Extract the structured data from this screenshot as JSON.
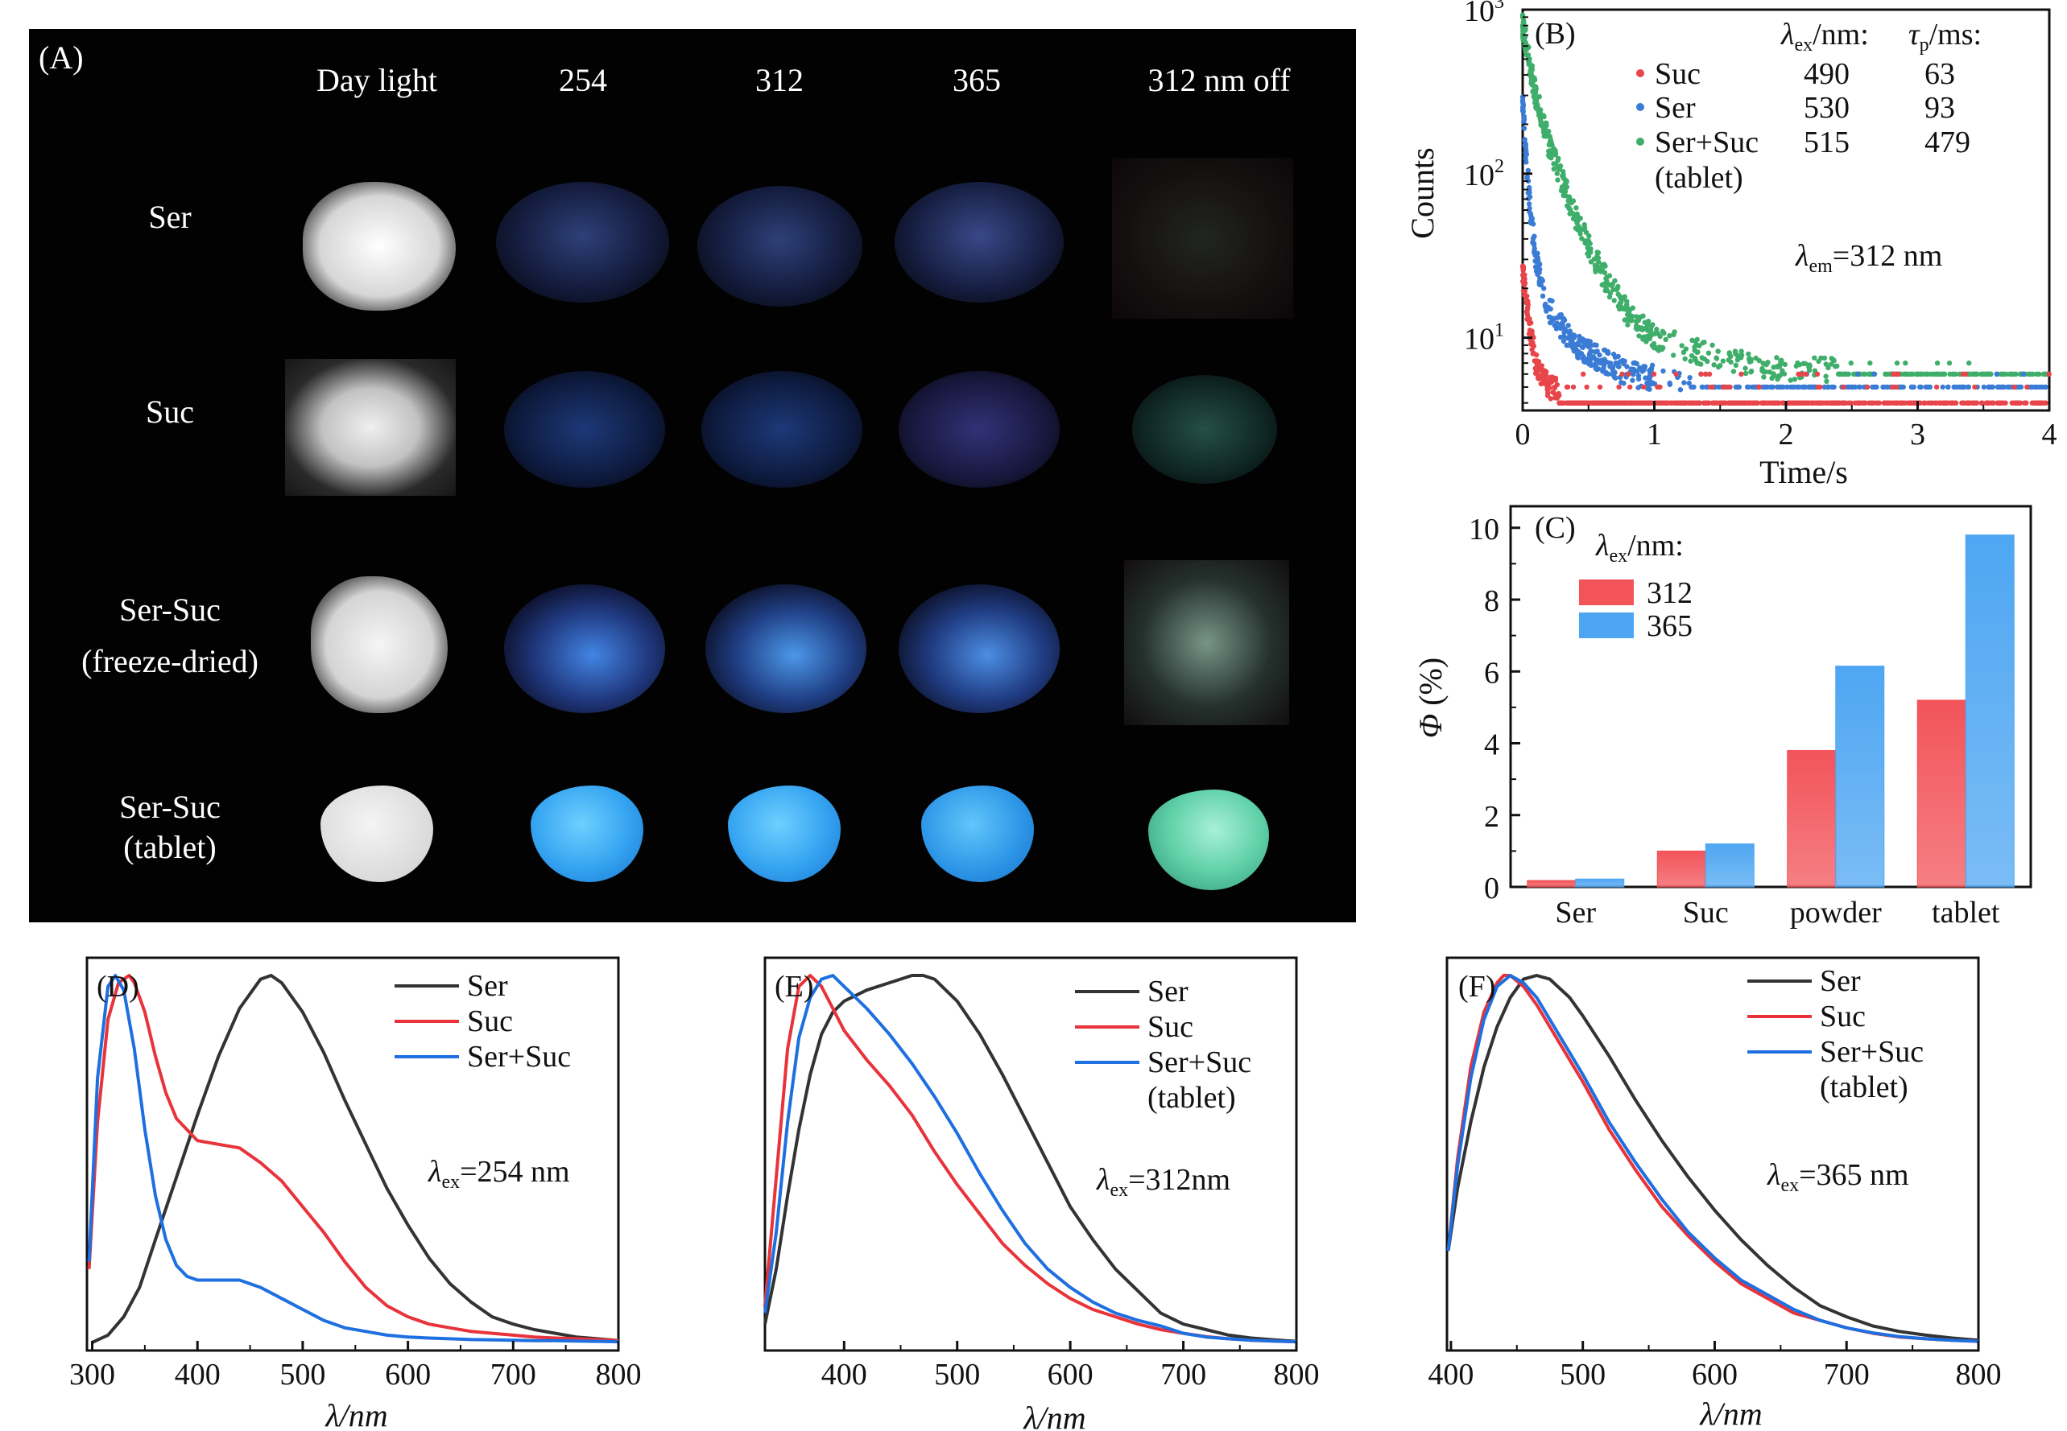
{
  "panel_a": {
    "label": "(A)",
    "columns": [
      "Day light",
      "254",
      "312",
      "365",
      "312 nm off"
    ],
    "rows": [
      {
        "line1": "Ser",
        "line2": ""
      },
      {
        "line1": "Suc",
        "line2": ""
      },
      {
        "line1": "Ser-Suc",
        "line2": "(freeze-dried)"
      },
      {
        "line1": "Ser-Suc",
        "line2": "(tablet)"
      }
    ],
    "colors": {
      "background": "#020202",
      "daylight": "#e8e8e8",
      "uv_blue": "#2f86e8",
      "afterglow_green": "#5fd0a8"
    }
  },
  "panel_b": {
    "label": "(B)",
    "ylabel": "Counts",
    "xlabel": "Time/s",
    "x_ticks": [
      "0",
      "1",
      "2",
      "3",
      "4"
    ],
    "y_ticks": [
      {
        "base": "10",
        "exp": "1"
      },
      {
        "base": "10",
        "exp": "2"
      },
      {
        "base": "10",
        "exp": "3"
      }
    ],
    "header_ex": {
      "sym": "λ",
      "sub": "ex",
      "rest": "/nm:"
    },
    "header_tau": {
      "sym": "τ",
      "sub": "p",
      "rest": "/ms:"
    },
    "em_note": {
      "sym": "λ",
      "sub": "em",
      "rest": "=312 nm"
    },
    "table": [
      {
        "name": "Suc",
        "extra": "",
        "ex": "490",
        "tau": "63",
        "color": "#e8454b"
      },
      {
        "name": "Ser",
        "extra": "",
        "ex": "530",
        "tau": "93",
        "color": "#3a7bd5"
      },
      {
        "name": "Ser+Suc",
        "extra": "(tablet)",
        "ex": "515",
        "tau": "479",
        "color": "#3fae6a"
      }
    ]
  },
  "panel_c": {
    "label": "(C)",
    "ylabel_sym": "Φ",
    "ylabel_rest": " (%)",
    "legend_title": {
      "sym": "λ",
      "sub": "ex",
      "rest": "/nm:"
    },
    "legend": [
      "312",
      "365"
    ],
    "y_ticks": [
      "0",
      "2",
      "4",
      "6",
      "8",
      "10"
    ],
    "colors": {
      "s312": "#f2545a",
      "s365": "#4ea6f2"
    }
  },
  "panel_d": {
    "label": "(D)",
    "xlabel": "λ/nm",
    "note": {
      "sym": "λ",
      "sub": "ex",
      "rest": "=254 nm"
    },
    "x_ticks": [
      "300",
      "400",
      "500",
      "600",
      "700",
      "800"
    ],
    "legend": [
      [
        "Ser"
      ],
      [
        "Suc"
      ],
      [
        "Ser+Suc"
      ]
    ]
  },
  "panel_e": {
    "label": "(E)",
    "xlabel": "λ/nm",
    "note": {
      "sym": "λ",
      "sub": "ex",
      "rest": "=312nm"
    },
    "x_ticks": [
      "400",
      "500",
      "600",
      "700",
      "800"
    ],
    "legend": [
      [
        "Ser"
      ],
      [
        "Suc"
      ],
      [
        "Ser+Suc",
        "(tablet)"
      ]
    ]
  },
  "panel_f": {
    "label": "(F)",
    "xlabel": "λ/nm",
    "note": {
      "sym": "λ",
      "sub": "ex",
      "rest": "=365 nm"
    },
    "x_ticks": [
      "400",
      "500",
      "600",
      "700",
      "800"
    ],
    "legend": [
      [
        "Ser"
      ],
      [
        "Suc"
      ],
      [
        "Ser+Suc",
        "(tablet)"
      ]
    ]
  },
  "colors": {
    "ser": "#333333",
    "suc": "#e8333b",
    "sersuc": "#1e6fe0"
  },
  "chart_data": [
    {
      "id": "B",
      "type": "scatter",
      "xlabel": "Time/s",
      "ylabel": "Counts",
      "xlim": [
        0,
        4
      ],
      "ylim": [
        3.6,
        1000
      ],
      "y_scale": "log",
      "series": [
        {
          "name": "Suc",
          "decay_lifetime_ms": 63,
          "peak_counts": 25,
          "floor_counts": 4,
          "points": [
            [
              0.0,
              25
            ],
            [
              0.05,
              12
            ],
            [
              0.1,
              7
            ],
            [
              0.2,
              5
            ],
            [
              0.4,
              4.5
            ],
            [
              1.0,
              4.2
            ],
            [
              2.0,
              4.0
            ],
            [
              4.0,
              4.0
            ]
          ]
        },
        {
          "name": "Ser",
          "decay_lifetime_ms": 93,
          "peak_counts": 260,
          "floor_counts": 4.5,
          "points": [
            [
              0.0,
              260
            ],
            [
              0.05,
              70
            ],
            [
              0.1,
              30
            ],
            [
              0.2,
              15
            ],
            [
              0.4,
              9
            ],
            [
              0.8,
              6
            ],
            [
              1.5,
              5
            ],
            [
              4.0,
              4.5
            ]
          ]
        },
        {
          "name": "Ser+Suc (tablet)",
          "decay_lifetime_ms": 479,
          "peak_counts": 800,
          "floor_counts": 5.5,
          "points": [
            [
              0.0,
              800
            ],
            [
              0.1,
              300
            ],
            [
              0.2,
              150
            ],
            [
              0.4,
              55
            ],
            [
              0.6,
              25
            ],
            [
              0.8,
              14
            ],
            [
              1.0,
              10
            ],
            [
              1.5,
              7.5
            ],
            [
              2.0,
              6.5
            ],
            [
              3.0,
              6
            ],
            [
              4.0,
              5.5
            ]
          ]
        }
      ]
    },
    {
      "id": "C",
      "type": "bar",
      "ylabel": "Φ (%)",
      "ylim": [
        0,
        10.6
      ],
      "categories": [
        "Ser",
        "Suc",
        "powder",
        "tablet"
      ],
      "series": [
        {
          "name": "312",
          "values": [
            0.18,
            1.0,
            3.8,
            5.2
          ]
        },
        {
          "name": "365",
          "values": [
            0.22,
            1.2,
            6.15,
            9.8
          ]
        }
      ]
    },
    {
      "id": "D",
      "type": "line",
      "xlabel": "λ/nm",
      "xlim": [
        295,
        800
      ],
      "ylim": [
        0,
        1.0
      ],
      "series": [
        {
          "name": "Ser",
          "x": [
            300,
            315,
            330,
            345,
            360,
            380,
            400,
            420,
            440,
            460,
            470,
            480,
            500,
            520,
            540,
            560,
            580,
            600,
            620,
            640,
            660,
            680,
            700,
            720,
            740,
            760,
            780,
            800
          ],
          "y": [
            0.0,
            0.02,
            0.07,
            0.15,
            0.28,
            0.45,
            0.62,
            0.78,
            0.91,
            0.99,
            1.0,
            0.98,
            0.9,
            0.79,
            0.66,
            0.54,
            0.42,
            0.32,
            0.23,
            0.16,
            0.11,
            0.07,
            0.05,
            0.035,
            0.025,
            0.015,
            0.01,
            0.005
          ]
        },
        {
          "name": "Suc",
          "x": [
            297,
            305,
            315,
            325,
            335,
            340,
            350,
            360,
            370,
            380,
            400,
            420,
            440,
            460,
            480,
            500,
            520,
            540,
            560,
            580,
            600,
            620,
            640,
            660,
            680,
            700,
            720,
            740,
            760,
            780,
            800
          ],
          "y": [
            0.2,
            0.6,
            0.88,
            0.98,
            1.0,
            0.98,
            0.9,
            0.78,
            0.68,
            0.61,
            0.55,
            0.54,
            0.53,
            0.49,
            0.44,
            0.37,
            0.3,
            0.22,
            0.15,
            0.1,
            0.07,
            0.05,
            0.04,
            0.03,
            0.025,
            0.02,
            0.015,
            0.012,
            0.01,
            0.008,
            0.005
          ]
        },
        {
          "name": "Ser+Suc",
          "x": [
            297,
            305,
            315,
            322,
            330,
            340,
            350,
            360,
            370,
            380,
            390,
            400,
            420,
            440,
            460,
            480,
            500,
            520,
            540,
            560,
            580,
            600,
            620,
            640,
            660,
            680,
            700,
            720,
            740,
            760,
            780,
            800
          ],
          "y": [
            0.22,
            0.72,
            0.97,
            1.0,
            0.96,
            0.8,
            0.58,
            0.4,
            0.28,
            0.21,
            0.18,
            0.17,
            0.17,
            0.17,
            0.15,
            0.12,
            0.09,
            0.06,
            0.04,
            0.03,
            0.02,
            0.015,
            0.012,
            0.01,
            0.008,
            0.007,
            0.006,
            0.005,
            0.005,
            0.004,
            0.003,
            0.002
          ]
        }
      ]
    },
    {
      "id": "E",
      "type": "line",
      "xlabel": "λ/nm",
      "xlim": [
        330,
        800
      ],
      "ylim": [
        0,
        1.0
      ],
      "series": [
        {
          "name": "Ser",
          "x": [
            330,
            340,
            350,
            360,
            370,
            380,
            390,
            400,
            420,
            440,
            460,
            470,
            480,
            500,
            520,
            540,
            560,
            580,
            600,
            620,
            640,
            660,
            680,
            700,
            720,
            740,
            760,
            780,
            800
          ],
          "y": [
            0.05,
            0.2,
            0.4,
            0.58,
            0.73,
            0.84,
            0.9,
            0.93,
            0.96,
            0.98,
            1.0,
            1.0,
            0.99,
            0.93,
            0.84,
            0.73,
            0.61,
            0.49,
            0.37,
            0.28,
            0.2,
            0.14,
            0.08,
            0.05,
            0.035,
            0.02,
            0.012,
            0.007,
            0.003
          ]
        },
        {
          "name": "Suc",
          "x": [
            330,
            340,
            350,
            360,
            370,
            380,
            390,
            400,
            420,
            440,
            460,
            480,
            500,
            520,
            540,
            560,
            580,
            600,
            620,
            640,
            660,
            680,
            700,
            720,
            740,
            760,
            780,
            800
          ],
          "y": [
            0.1,
            0.45,
            0.8,
            0.97,
            1.0,
            0.97,
            0.91,
            0.85,
            0.77,
            0.7,
            0.62,
            0.52,
            0.43,
            0.35,
            0.27,
            0.21,
            0.16,
            0.12,
            0.09,
            0.07,
            0.05,
            0.035,
            0.025,
            0.016,
            0.01,
            0.006,
            0.004,
            0.002
          ]
        },
        {
          "name": "Ser+Suc (tablet)",
          "x": [
            330,
            340,
            350,
            360,
            370,
            380,
            390,
            400,
            420,
            440,
            460,
            480,
            500,
            520,
            540,
            560,
            580,
            600,
            620,
            640,
            660,
            680,
            700,
            720,
            740,
            760,
            780,
            800
          ],
          "y": [
            0.08,
            0.3,
            0.6,
            0.83,
            0.94,
            0.99,
            1.0,
            0.97,
            0.91,
            0.84,
            0.76,
            0.67,
            0.57,
            0.46,
            0.36,
            0.27,
            0.2,
            0.15,
            0.11,
            0.08,
            0.06,
            0.045,
            0.025,
            0.015,
            0.01,
            0.006,
            0.004,
            0.002
          ]
        }
      ]
    },
    {
      "id": "F",
      "type": "line",
      "xlabel": "λ/nm",
      "xlim": [
        397,
        800
      ],
      "ylim": [
        0,
        1.0
      ],
      "series": [
        {
          "name": "Ser",
          "x": [
            398,
            405,
            415,
            425,
            435,
            445,
            455,
            465,
            475,
            490,
            500,
            520,
            540,
            560,
            580,
            600,
            620,
            640,
            660,
            680,
            700,
            720,
            740,
            760,
            780,
            800
          ],
          "y": [
            0.25,
            0.42,
            0.6,
            0.75,
            0.86,
            0.94,
            0.99,
            1.0,
            0.99,
            0.94,
            0.89,
            0.78,
            0.66,
            0.55,
            0.45,
            0.36,
            0.28,
            0.21,
            0.15,
            0.1,
            0.07,
            0.045,
            0.03,
            0.02,
            0.012,
            0.006
          ]
        },
        {
          "name": "Suc",
          "x": [
            398,
            405,
            415,
            425,
            435,
            440,
            445,
            455,
            465,
            480,
            500,
            520,
            540,
            560,
            580,
            600,
            620,
            640,
            660,
            680,
            700,
            720,
            740,
            760,
            780,
            800
          ],
          "y": [
            0.25,
            0.5,
            0.75,
            0.9,
            0.98,
            1.0,
            1.0,
            0.97,
            0.92,
            0.83,
            0.71,
            0.58,
            0.47,
            0.37,
            0.29,
            0.22,
            0.16,
            0.12,
            0.08,
            0.06,
            0.04,
            0.025,
            0.015,
            0.01,
            0.006,
            0.003
          ]
        },
        {
          "name": "Ser+Suc (tablet)",
          "x": [
            398,
            405,
            415,
            425,
            435,
            445,
            455,
            465,
            480,
            500,
            520,
            540,
            560,
            580,
            600,
            620,
            640,
            660,
            680,
            700,
            720,
            740,
            760,
            780,
            800
          ],
          "y": [
            0.25,
            0.48,
            0.72,
            0.88,
            0.97,
            1.0,
            0.98,
            0.94,
            0.85,
            0.73,
            0.6,
            0.49,
            0.39,
            0.3,
            0.23,
            0.17,
            0.13,
            0.09,
            0.06,
            0.04,
            0.026,
            0.016,
            0.01,
            0.006,
            0.003
          ]
        }
      ]
    }
  ]
}
